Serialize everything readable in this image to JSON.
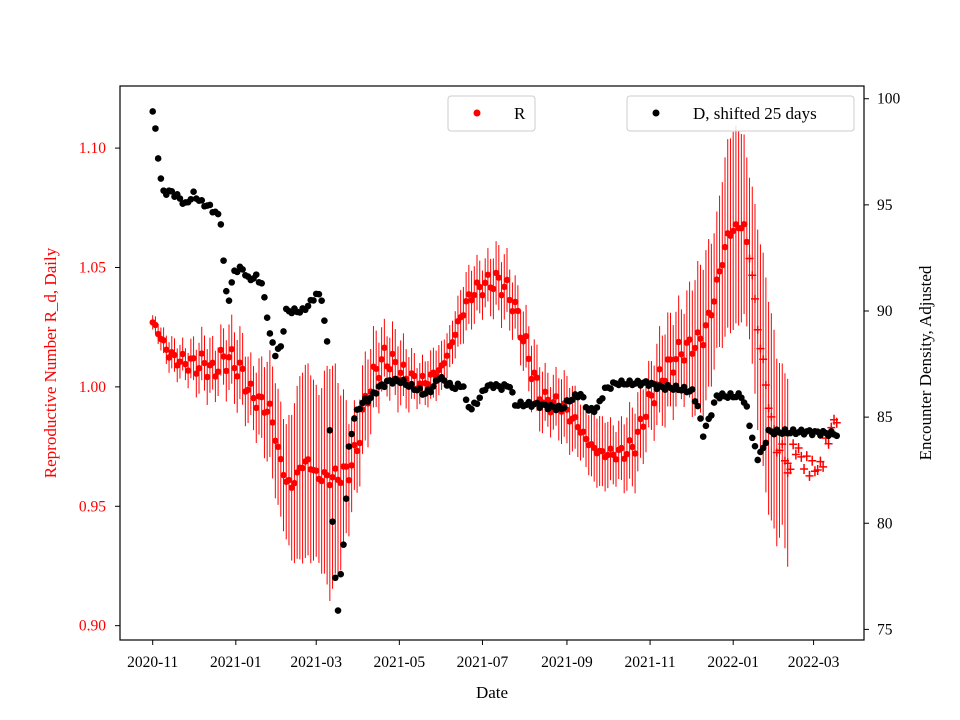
{
  "chart_data": {
    "type": "scatter",
    "xlabel": "Date",
    "y_left_label": "Reproductive Number R_d, Daily",
    "y_right_label": "Encounter Density, Adjusted",
    "x_ticks": [
      "2020-11",
      "2021-01",
      "2021-03",
      "2021-05",
      "2021-07",
      "2021-09",
      "2021-11",
      "2022-01",
      "2022-03"
    ],
    "x_tick_days": [
      0,
      61,
      120,
      181,
      242,
      304,
      365,
      426,
      485
    ],
    "x_range_days": [
      -24,
      522
    ],
    "y_left_ticks": [
      "0.90",
      "0.95",
      "1.00",
      "1.05",
      "1.10"
    ],
    "y_left_range": [
      0.894,
      1.126
    ],
    "y_right_ticks": [
      "75",
      "80",
      "85",
      "90",
      "95",
      "100"
    ],
    "y_right_range": [
      74.5,
      100.6
    ],
    "legend_left": {
      "label": "R"
    },
    "legend_right": {
      "label": "D, shifted 25 days"
    },
    "colors": {
      "R": "#ff0000",
      "D": "#000000",
      "left_axis": "#ff0000",
      "right_axis": "#000000"
    },
    "series_R": {
      "name": "R",
      "day_step": 2,
      "day_start": 0,
      "day_end": 466,
      "marker_cross_from_day": 438,
      "knots": [
        [
          0,
          1.027
        ],
        [
          4,
          1.023
        ],
        [
          8,
          1.018
        ],
        [
          12,
          1.014
        ],
        [
          16,
          1.012
        ],
        [
          20,
          1.011
        ],
        [
          26,
          1.01
        ],
        [
          32,
          1.009
        ],
        [
          38,
          1.01
        ],
        [
          44,
          1.006
        ],
        [
          50,
          1.011
        ],
        [
          56,
          1.012
        ],
        [
          60,
          1.01
        ],
        [
          66,
          1.005
        ],
        [
          72,
          0.997
        ],
        [
          80,
          0.993
        ],
        [
          86,
          0.99
        ],
        [
          90,
          0.98
        ],
        [
          94,
          0.968
        ],
        [
          98,
          0.961
        ],
        [
          102,
          0.958
        ],
        [
          108,
          0.966
        ],
        [
          114,
          0.969
        ],
        [
          120,
          0.963
        ],
        [
          126,
          0.962
        ],
        [
          132,
          0.962
        ],
        [
          138,
          0.963
        ],
        [
          144,
          0.965
        ],
        [
          150,
          0.974
        ],
        [
          154,
          0.988
        ],
        [
          158,
          0.997
        ],
        [
          164,
          1.007
        ],
        [
          170,
          1.012
        ],
        [
          176,
          1.01
        ],
        [
          182,
          1.006
        ],
        [
          188,
          1.004
        ],
        [
          194,
          1.002
        ],
        [
          200,
          1.002
        ],
        [
          206,
          1.005
        ],
        [
          212,
          1.008
        ],
        [
          218,
          1.016
        ],
        [
          224,
          1.026
        ],
        [
          230,
          1.035
        ],
        [
          236,
          1.04
        ],
        [
          242,
          1.042
        ],
        [
          248,
          1.044
        ],
        [
          254,
          1.044
        ],
        [
          258,
          1.042
        ],
        [
          264,
          1.036
        ],
        [
          270,
          1.025
        ],
        [
          276,
          1.012
        ],
        [
          282,
          1.0
        ],
        [
          288,
          0.994
        ],
        [
          294,
          0.993
        ],
        [
          300,
          0.992
        ],
        [
          306,
          0.988
        ],
        [
          312,
          0.984
        ],
        [
          318,
          0.978
        ],
        [
          324,
          0.974
        ],
        [
          330,
          0.972
        ],
        [
          336,
          0.972
        ],
        [
          342,
          0.972
        ],
        [
          348,
          0.973
        ],
        [
          354,
          0.976
        ],
        [
          358,
          0.983
        ],
        [
          362,
          0.99
        ],
        [
          368,
          0.998
        ],
        [
          374,
          1.005
        ],
        [
          380,
          1.009
        ],
        [
          386,
          1.014
        ],
        [
          392,
          1.016
        ],
        [
          398,
          1.018
        ],
        [
          404,
          1.021
        ],
        [
          410,
          1.032
        ],
        [
          416,
          1.048
        ],
        [
          422,
          1.063
        ],
        [
          428,
          1.067
        ],
        [
          434,
          1.067
        ],
        [
          438,
          1.055
        ],
        [
          442,
          1.036
        ],
        [
          446,
          1.016
        ],
        [
          450,
          1.002
        ],
        [
          454,
          0.985
        ],
        [
          458,
          0.976
        ],
        [
          462,
          0.972
        ],
        [
          466,
          0.968
        ]
      ],
      "error_knots": [
        [
          0,
          0.004
        ],
        [
          40,
          0.012
        ],
        [
          80,
          0.018
        ],
        [
          110,
          0.04
        ],
        [
          130,
          0.05
        ],
        [
          150,
          0.02
        ],
        [
          200,
          0.01
        ],
        [
          240,
          0.013
        ],
        [
          260,
          0.014
        ],
        [
          300,
          0.014
        ],
        [
          340,
          0.015
        ],
        [
          380,
          0.02
        ],
        [
          420,
          0.04
        ],
        [
          440,
          0.045
        ],
        [
          466,
          0.045
        ]
      ]
    },
    "series_R_tail": {
      "name": "R (crosses)",
      "knots": [
        [
          466,
          0.966
        ],
        [
          472,
          0.975
        ],
        [
          478,
          0.968
        ],
        [
          484,
          0.966
        ],
        [
          490,
          0.966
        ],
        [
          496,
          0.979
        ],
        [
          502,
          0.988
        ]
      ]
    },
    "series_D": {
      "name": "D, shifted 25 days",
      "day_step": 2,
      "day_start": 0,
      "day_end": 502,
      "knots": [
        [
          0,
          99.4
        ],
        [
          2,
          98.5
        ],
        [
          4,
          97.3
        ],
        [
          6,
          96.2
        ],
        [
          8,
          95.6
        ],
        [
          14,
          95.6
        ],
        [
          20,
          95.3
        ],
        [
          24,
          95.0
        ],
        [
          30,
          95.5
        ],
        [
          36,
          95.1
        ],
        [
          42,
          94.9
        ],
        [
          48,
          94.5
        ],
        [
          50,
          94.2
        ],
        [
          52,
          92.3
        ],
        [
          54,
          90.9
        ],
        [
          56,
          90.6
        ],
        [
          60,
          91.9
        ],
        [
          66,
          92.0
        ],
        [
          70,
          91.5
        ],
        [
          76,
          91.6
        ],
        [
          80,
          91.3
        ],
        [
          84,
          89.8
        ],
        [
          86,
          88.9
        ],
        [
          90,
          88.0
        ],
        [
          94,
          88.3
        ],
        [
          98,
          90.0
        ],
        [
          104,
          90.0
        ],
        [
          110,
          90.0
        ],
        [
          116,
          90.4
        ],
        [
          120,
          90.8
        ],
        [
          124,
          90.6
        ],
        [
          126,
          89.5
        ],
        [
          128,
          88.5
        ],
        [
          130,
          84.5
        ],
        [
          132,
          80.0
        ],
        [
          134,
          77.4
        ],
        [
          136,
          76.0
        ],
        [
          140,
          79.0
        ],
        [
          144,
          83.5
        ],
        [
          148,
          85.0
        ],
        [
          154,
          85.7
        ],
        [
          160,
          85.9
        ],
        [
          166,
          86.4
        ],
        [
          174,
          86.7
        ],
        [
          182,
          86.7
        ],
        [
          188,
          86.5
        ],
        [
          194,
          86.3
        ],
        [
          200,
          86.1
        ],
        [
          206,
          86.4
        ],
        [
          210,
          86.9
        ],
        [
          214,
          86.7
        ],
        [
          220,
          86.4
        ],
        [
          228,
          86.5
        ],
        [
          230,
          85.7
        ],
        [
          234,
          85.4
        ],
        [
          240,
          85.9
        ],
        [
          244,
          86.4
        ],
        [
          250,
          86.5
        ],
        [
          256,
          86.4
        ],
        [
          262,
          86.5
        ],
        [
          266,
          85.6
        ],
        [
          272,
          85.6
        ],
        [
          280,
          85.6
        ],
        [
          290,
          85.5
        ],
        [
          300,
          85.4
        ],
        [
          306,
          85.8
        ],
        [
          314,
          86.1
        ],
        [
          320,
          85.3
        ],
        [
          326,
          85.4
        ],
        [
          332,
          86.3
        ],
        [
          340,
          86.6
        ],
        [
          348,
          86.6
        ],
        [
          356,
          86.6
        ],
        [
          364,
          86.6
        ],
        [
          372,
          86.4
        ],
        [
          380,
          86.4
        ],
        [
          390,
          86.3
        ],
        [
          396,
          86.2
        ],
        [
          400,
          85.5
        ],
        [
          404,
          84.2
        ],
        [
          410,
          85.2
        ],
        [
          414,
          86.0
        ],
        [
          420,
          86.0
        ],
        [
          426,
          86.0
        ],
        [
          432,
          86.0
        ],
        [
          436,
          85.4
        ],
        [
          440,
          84.0
        ],
        [
          444,
          83.1
        ],
        [
          448,
          83.5
        ],
        [
          452,
          84.3
        ],
        [
          458,
          84.3
        ],
        [
          466,
          84.3
        ],
        [
          480,
          84.3
        ],
        [
          502,
          84.2
        ]
      ]
    }
  }
}
